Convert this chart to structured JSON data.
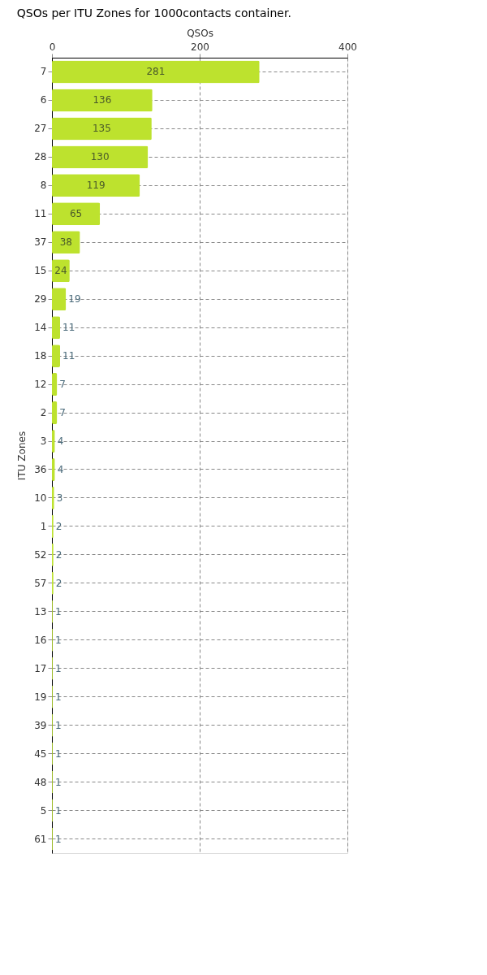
{
  "chart_data": {
    "type": "bar",
    "orientation": "horizontal",
    "title": "QSOs per ITU Zones for 1000contacts container.",
    "xlabel": "QSOs",
    "ylabel": "ITU Zones",
    "categories": [
      "7",
      "6",
      "27",
      "28",
      "8",
      "11",
      "37",
      "15",
      "29",
      "14",
      "18",
      "12",
      "2",
      "3",
      "36",
      "10",
      "1",
      "52",
      "57",
      "13",
      "16",
      "17",
      "19",
      "39",
      "45",
      "48",
      "5",
      "61"
    ],
    "values": [
      281,
      136,
      135,
      130,
      119,
      65,
      38,
      24,
      19,
      11,
      11,
      7,
      7,
      4,
      4,
      3,
      2,
      2,
      2,
      1,
      1,
      1,
      1,
      1,
      1,
      1,
      1,
      1
    ],
    "color": "#bde22e",
    "xlim": [
      0,
      400
    ],
    "xticks": [
      0,
      200,
      400
    ],
    "grid": true,
    "data_labels": true
  }
}
